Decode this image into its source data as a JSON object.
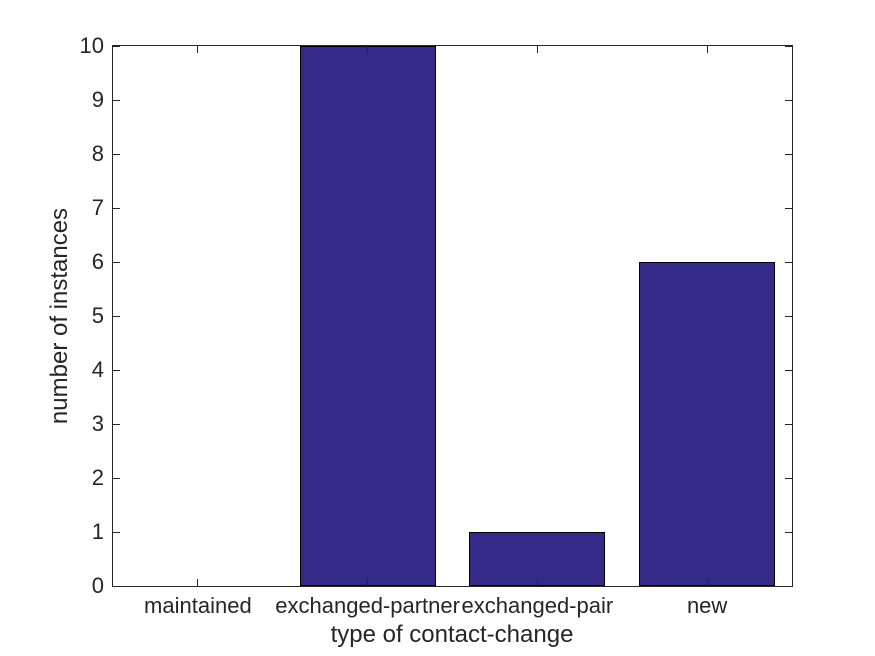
{
  "chart_data": {
    "type": "bar",
    "title": "",
    "xlabel": "type of contact-change",
    "ylabel": "number of instances",
    "categories": [
      "maintained",
      "exchanged-partner",
      "exchanged-pair",
      "new"
    ],
    "values": [
      0,
      10,
      1,
      6
    ],
    "ylim": [
      0,
      10
    ],
    "yticks": [
      0,
      1,
      2,
      3,
      4,
      5,
      6,
      7,
      8,
      9,
      10
    ],
    "ytick_labels": [
      "0",
      "1",
      "2",
      "3",
      "4",
      "5",
      "6",
      "7",
      "8",
      "9",
      "10"
    ],
    "bar_width_fraction": 0.8,
    "grid": false,
    "legend_position": "none",
    "axis_box": true,
    "colors": {
      "bar_fill": "#352A87",
      "bar_edge": "#000000",
      "axis": "#262626",
      "text": "#262626",
      "background": "#FFFFFF"
    }
  }
}
